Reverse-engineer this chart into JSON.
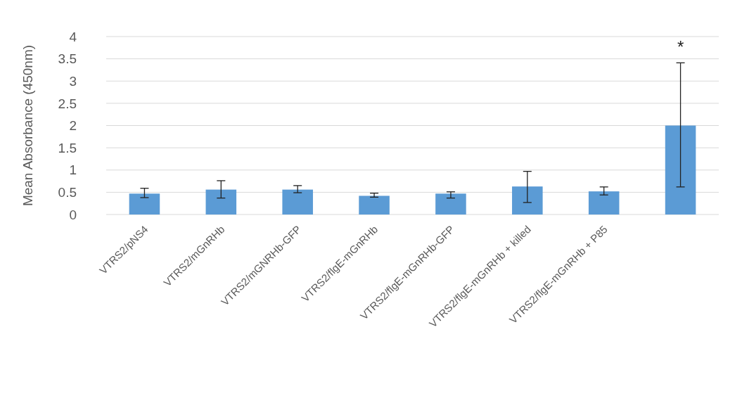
{
  "chart_data": {
    "type": "bar",
    "ylabel": "Mean Absorbance (450nm)",
    "categories": [
      "VTRS2/pNS4",
      "VTRS2/mGnRHb",
      "VTRS2/mGNRHb-GFP",
      "VTRS2/flgE-mGnRHb",
      "VTRS2/flgE-mGnRHb-GFP",
      "VTRS2/flgE-mGnRHb + killed",
      "VTRS2/flgE-mGnRHb + P85",
      null
    ],
    "values": [
      0.47,
      0.56,
      0.56,
      0.42,
      0.47,
      0.63,
      0.52,
      2.0
    ],
    "errors": [
      [
        0.38,
        0.59
      ],
      [
        0.37,
        0.76
      ],
      [
        0.49,
        0.65
      ],
      [
        0.39,
        0.48
      ],
      [
        0.37,
        0.51
      ],
      [
        0.27,
        0.97
      ],
      [
        0.44,
        0.62
      ],
      [
        0.62,
        3.41
      ]
    ],
    "color": "#5b9bd5",
    "ylim": [
      0,
      4
    ],
    "yticks": [
      0,
      0.5,
      1,
      1.5,
      2,
      2.5,
      3,
      3.5,
      4
    ],
    "grid": "y",
    "annotations": [
      "*"
    ]
  }
}
